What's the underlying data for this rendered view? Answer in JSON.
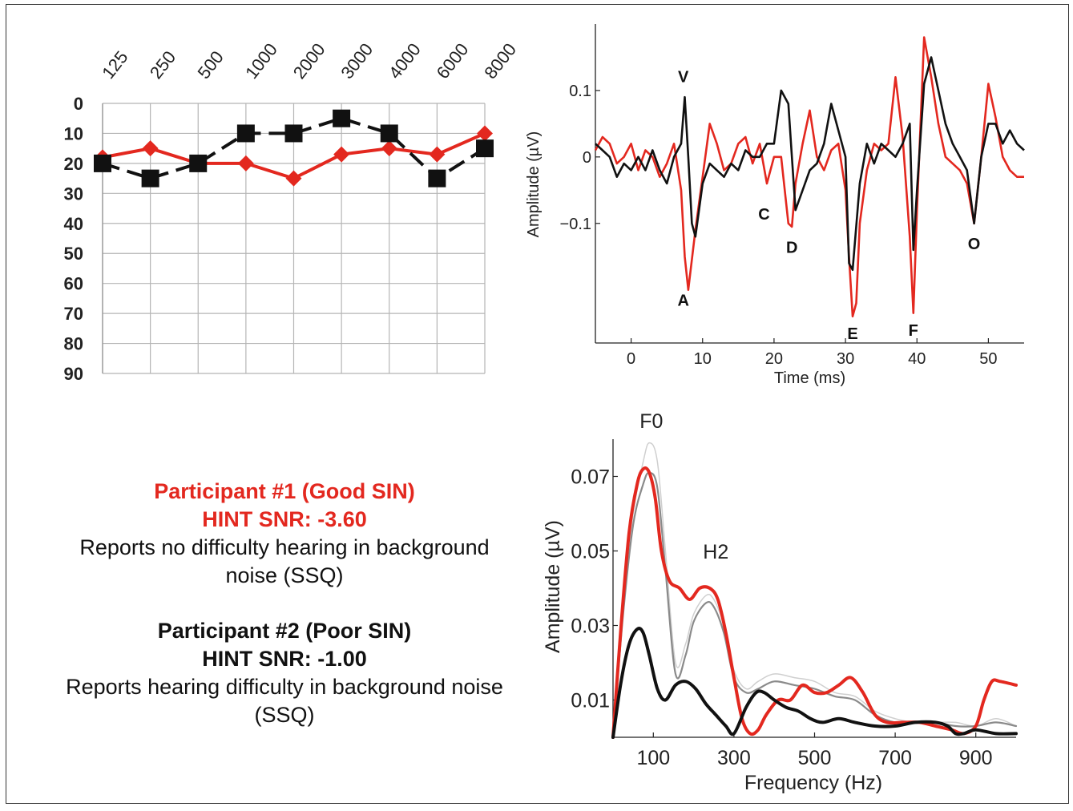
{
  "colors": {
    "participant1": "#e3281f",
    "participant2": "#111111",
    "gray_mid": "#8a8a8a",
    "gray_light": "#cfcfcf",
    "grid": "#b5b5b5"
  },
  "participants": {
    "p1": {
      "title": "Participant #1 (Good SIN)",
      "hint": "HINT SNR:  -3.60",
      "desc_line1": "Reports no difficulty hearing in background",
      "desc_line2": "noise (SSQ)"
    },
    "p2": {
      "title": "Participant #2 (Poor SIN)",
      "hint": "HINT SNR:  -1.00",
      "desc_line1": "Reports hearing difficulty in background noise",
      "desc_line2": "(SSQ)"
    }
  },
  "chart_data": [
    {
      "type": "line",
      "id": "audiogram",
      "title": "",
      "xlabel": "",
      "ylabel": "",
      "categories": [
        "125",
        "250",
        "500",
        "1000",
        "2000",
        "3000",
        "4000",
        "6000",
        "8000"
      ],
      "y_ticks": [
        "0",
        "10",
        "20",
        "30",
        "40",
        "50",
        "60",
        "70",
        "80",
        "90"
      ],
      "ylim": [
        0,
        90
      ],
      "y_inverted": true,
      "grid": true,
      "legend": "none",
      "series": [
        {
          "color": "#e3281f",
          "marker": "diamond",
          "line": "solid",
          "values": [
            18,
            15,
            20,
            20,
            25,
            17,
            15,
            17,
            10
          ]
        },
        {
          "color": "#111111",
          "marker": "square",
          "line": "dashed",
          "values": [
            20,
            25,
            20,
            10,
            10,
            5,
            10,
            25,
            15
          ]
        }
      ]
    },
    {
      "type": "line",
      "id": "abr-waveform",
      "title": "",
      "xlabel": "Time (ms)",
      "ylabel": "Amplitude (µV)",
      "xlim": [
        -5,
        55
      ],
      "ylim": [
        -0.28,
        0.2
      ],
      "x_ticks": [
        "0",
        "10",
        "20",
        "30",
        "40",
        "50"
      ],
      "y_ticks": [
        "0.1",
        "0",
        "−0.1"
      ],
      "grid": false,
      "legend": "none",
      "peak_labels": [
        {
          "label": "V",
          "x": 7.3,
          "y": 0.11
        },
        {
          "label": "A",
          "x": 7.3,
          "y": -0.2
        },
        {
          "label": "C",
          "x": 18.6,
          "y": -0.07
        },
        {
          "label": "D",
          "x": 22.5,
          "y": -0.12
        },
        {
          "label": "E",
          "x": 31.0,
          "y": -0.25
        },
        {
          "label": "F",
          "x": 39.5,
          "y": -0.245
        },
        {
          "label": "O",
          "x": 48.0,
          "y": -0.115
        }
      ],
      "series": [
        {
          "color": "#e3281f",
          "x": [
            -5,
            -4,
            -3,
            -2,
            -1,
            0,
            1,
            2,
            3,
            4,
            5,
            6,
            7,
            7.5,
            8,
            9,
            10,
            11,
            12,
            13,
            14,
            15,
            16,
            17,
            18,
            19,
            20,
            21,
            22,
            22.5,
            23,
            24,
            25,
            26,
            27,
            28,
            29,
            30,
            30.5,
            31,
            31.5,
            32,
            33,
            34,
            35,
            36,
            37,
            38,
            39,
            39.5,
            40,
            41,
            42,
            43,
            44,
            45,
            46,
            47,
            48,
            49,
            50,
            51,
            52,
            53,
            54,
            55
          ],
          "y": [
            0.01,
            0.03,
            0.02,
            -0.01,
            0.0,
            0.02,
            -0.02,
            0.01,
            0.0,
            -0.03,
            -0.01,
            0.02,
            -0.05,
            -0.15,
            -0.2,
            -0.11,
            -0.03,
            0.05,
            0.02,
            -0.02,
            -0.01,
            0.02,
            0.03,
            -0.01,
            0.02,
            -0.04,
            0.0,
            0.0,
            -0.1,
            -0.105,
            -0.04,
            0.02,
            0.07,
            0.0,
            -0.02,
            0.01,
            0.02,
            -0.05,
            -0.15,
            -0.24,
            -0.22,
            -0.1,
            -0.02,
            0.02,
            0.01,
            0.02,
            0.12,
            0.03,
            -0.12,
            -0.235,
            -0.08,
            0.18,
            0.12,
            0.05,
            0.0,
            -0.01,
            -0.02,
            -0.04,
            -0.1,
            0.0,
            0.11,
            0.06,
            0.0,
            -0.02,
            -0.03,
            -0.03
          ]
        },
        {
          "color": "#111111",
          "x": [
            -5,
            -4,
            -3,
            -2,
            -1,
            0,
            1,
            2,
            3,
            4,
            5,
            6,
            7,
            7.5,
            8,
            8.5,
            9,
            10,
            11,
            12,
            13,
            14,
            15,
            16,
            17,
            18,
            19,
            20,
            21,
            22,
            22.5,
            23,
            24,
            25,
            26,
            27,
            28,
            29,
            30,
            30.5,
            31,
            32,
            33,
            34,
            35,
            36,
            37,
            38,
            39,
            39.5,
            40,
            41,
            42,
            43,
            44,
            45,
            46,
            47,
            48,
            49,
            50,
            51,
            52,
            53,
            54,
            55
          ],
          "y": [
            0.02,
            0.01,
            0.0,
            -0.03,
            -0.01,
            -0.02,
            0.0,
            -0.02,
            0.01,
            -0.02,
            -0.04,
            0.0,
            0.02,
            0.09,
            0.0,
            -0.1,
            -0.12,
            -0.04,
            -0.01,
            -0.02,
            -0.03,
            -0.01,
            -0.02,
            0.01,
            0.0,
            0.0,
            0.02,
            0.02,
            0.1,
            0.08,
            0.0,
            -0.08,
            -0.05,
            -0.02,
            -0.01,
            0.02,
            0.08,
            0.04,
            0.0,
            -0.16,
            -0.17,
            -0.04,
            0.02,
            -0.01,
            0.02,
            0.01,
            0.0,
            0.02,
            0.05,
            -0.14,
            -0.05,
            0.11,
            0.15,
            0.1,
            0.05,
            0.02,
            0.0,
            -0.02,
            -0.1,
            0.0,
            0.05,
            0.05,
            0.02,
            0.04,
            0.02,
            0.01
          ]
        }
      ]
    },
    {
      "type": "line",
      "id": "spectrum",
      "title": "",
      "xlabel": "Frequency (Hz)",
      "ylabel": "Amplitude (µV)",
      "xlim": [
        0,
        1000
      ],
      "ylim": [
        0,
        0.08
      ],
      "x_ticks": [
        "100",
        "300",
        "500",
        "700",
        "900"
      ],
      "y_ticks": [
        "0.07",
        "0.05",
        "0.03",
        "0.01"
      ],
      "grid": false,
      "legend": "none",
      "annotations": [
        {
          "label": "F0",
          "x": 95,
          "y": 0.083
        },
        {
          "label": "H2",
          "x": 255,
          "y": 0.048
        }
      ],
      "series": [
        {
          "color": "#cfcfcf",
          "width": 1.5,
          "x": [
            0,
            25,
            50,
            75,
            90,
            110,
            130,
            155,
            180,
            200,
            230,
            250,
            275,
            300,
            330,
            360,
            400,
            450,
            500,
            550,
            600,
            650,
            700,
            750,
            800,
            850,
            900,
            950,
            1000
          ],
          "y": [
            0.0,
            0.035,
            0.06,
            0.074,
            0.079,
            0.074,
            0.05,
            0.02,
            0.025,
            0.033,
            0.038,
            0.037,
            0.03,
            0.018,
            0.013,
            0.015,
            0.017,
            0.016,
            0.015,
            0.012,
            0.011,
            0.007,
            0.005,
            0.004,
            0.004,
            0.004,
            0.003,
            0.005,
            0.003
          ]
        },
        {
          "color": "#8a8a8a",
          "width": 2.2,
          "x": [
            0,
            25,
            50,
            75,
            90,
            110,
            130,
            155,
            180,
            200,
            230,
            250,
            275,
            300,
            330,
            360,
            400,
            450,
            500,
            550,
            600,
            650,
            700,
            750,
            800,
            850,
            900,
            950,
            1000
          ],
          "y": [
            0.0,
            0.033,
            0.057,
            0.068,
            0.071,
            0.067,
            0.045,
            0.017,
            0.022,
            0.031,
            0.036,
            0.035,
            0.028,
            0.016,
            0.012,
            0.013,
            0.015,
            0.014,
            0.013,
            0.011,
            0.01,
            0.006,
            0.004,
            0.004,
            0.004,
            0.003,
            0.003,
            0.004,
            0.003
          ]
        },
        {
          "color": "#e3281f",
          "width": 4,
          "x": [
            0,
            20,
            40,
            60,
            75,
            90,
            105,
            120,
            140,
            165,
            190,
            215,
            240,
            260,
            280,
            300,
            320,
            340,
            360,
            380,
            410,
            440,
            470,
            500,
            530,
            560,
            590,
            620,
            650,
            680,
            720,
            760,
            800,
            840,
            870,
            900,
            920,
            940,
            960,
            1000
          ],
          "y": [
            0.0,
            0.03,
            0.055,
            0.068,
            0.072,
            0.071,
            0.064,
            0.05,
            0.042,
            0.04,
            0.037,
            0.04,
            0.04,
            0.037,
            0.028,
            0.016,
            0.005,
            0.001,
            0.002,
            0.006,
            0.01,
            0.01,
            0.014,
            0.012,
            0.012,
            0.014,
            0.016,
            0.012,
            0.006,
            0.004,
            0.004,
            0.004,
            0.003,
            0.002,
            0.001,
            0.003,
            0.01,
            0.015,
            0.015,
            0.014
          ]
        },
        {
          "color": "#111111",
          "width": 4,
          "x": [
            0,
            20,
            40,
            60,
            75,
            90,
            110,
            130,
            155,
            180,
            205,
            230,
            255,
            280,
            300,
            330,
            355,
            375,
            400,
            430,
            460,
            490,
            520,
            560,
            600,
            650,
            700,
            750,
            800,
            830,
            850,
            870,
            900,
            950,
            1000
          ],
          "y": [
            0.0,
            0.015,
            0.025,
            0.029,
            0.028,
            0.022,
            0.013,
            0.01,
            0.014,
            0.015,
            0.013,
            0.009,
            0.006,
            0.003,
            0.001,
            0.008,
            0.012,
            0.012,
            0.01,
            0.008,
            0.007,
            0.005,
            0.004,
            0.005,
            0.004,
            0.003,
            0.003,
            0.004,
            0.004,
            0.003,
            0.001,
            0.001,
            0.002,
            0.001,
            0.001
          ]
        }
      ]
    }
  ]
}
